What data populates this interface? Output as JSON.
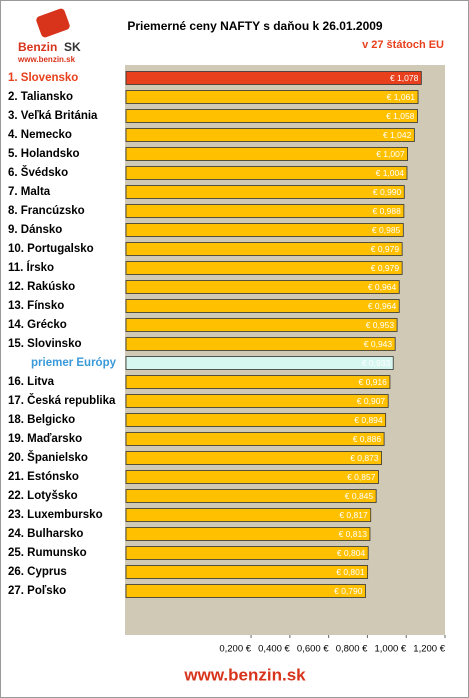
{
  "logo": {
    "name": "Benzin",
    "country": "SK",
    "url": "www.benzin.sk"
  },
  "footer": "www.benzin.sk",
  "chart_data": {
    "type": "hbar",
    "title": "Priemerné ceny NAFTY s daňou k 26.01.2009",
    "subtitle": "v 27 štátoch EU",
    "categories": [
      "1. Slovensko",
      "2. Taliansko",
      "3. Veľká Británia",
      "4. Nemecko",
      "5. Holandsko",
      "6. Švédsko",
      "7. Malta",
      "8. Francúzsko",
      "9. Dánsko",
      "10. Portugalsko",
      "11. Írsko",
      "12. Rakúsko",
      "13. Fínsko",
      "14. Grécko",
      "15. Slovinsko",
      "priemer Európy",
      "16. Litva",
      "17. Česká republika",
      "18. Belgicko",
      "19. Maďarsko",
      "20. Španielsko",
      "21. Estónsko",
      "22. Lotyšsko",
      "23. Luxembursko",
      "24. Bulharsko",
      "25. Rumunsko",
      "26. Cyprus",
      "27. Poľsko"
    ],
    "values": [
      1.078,
      1.061,
      1.058,
      1.042,
      1.007,
      1.004,
      0.99,
      0.988,
      0.985,
      0.979,
      0.979,
      0.964,
      0.964,
      0.953,
      0.943,
      0.933,
      0.916,
      0.907,
      0.894,
      0.886,
      0.873,
      0.857,
      0.845,
      0.817,
      0.813,
      0.804,
      0.801,
      0.79
    ],
    "value_labels": [
      "€ 1,078",
      "€ 1,061",
      "€ 1,058",
      "€ 1,042",
      "€ 1,007",
      "€ 1,004",
      "€ 0,990",
      "€ 0,988",
      "€ 0,985",
      "€ 0,979",
      "€ 0,979",
      "€ 0,964",
      "€ 0,964",
      "€ 0,953",
      "€ 0,943",
      "€ 0,933",
      "€ 0,916",
      "€ 0,907",
      "€ 0,894",
      "€ 0,886",
      "€ 0,873",
      "€ 0,857",
      "€ 0,845",
      "€ 0,817",
      "€ 0,813",
      "€ 0,804",
      "€ 0,801",
      "€ 0,790"
    ],
    "colors": [
      "#e8401c",
      "#ffc000",
      "#ffc000",
      "#ffc000",
      "#ffc000",
      "#ffc000",
      "#ffc000",
      "#ffc000",
      "#ffc000",
      "#ffc000",
      "#ffc000",
      "#ffc000",
      "#ffc000",
      "#ffc000",
      "#ffc000",
      "#d6f7f0",
      "#ffc000",
      "#ffc000",
      "#ffc000",
      "#ffc000",
      "#ffc000",
      "#ffc000",
      "#ffc000",
      "#ffc000",
      "#ffc000",
      "#ffc000",
      "#ffc000",
      "#ffc000"
    ],
    "label_colors": [
      "#e8401c",
      "#000",
      "#000",
      "#000",
      "#000",
      "#000",
      "#000",
      "#000",
      "#000",
      "#000",
      "#000",
      "#000",
      "#000",
      "#000",
      "#000",
      "#3a9ad9",
      "#000",
      "#000",
      "#000",
      "#000",
      "#000",
      "#000",
      "#000",
      "#000",
      "#000",
      "#000",
      "#000",
      "#000"
    ],
    "xlim": [
      -0.45,
      1.2
    ],
    "xticks": [
      {
        "value": 0.2,
        "label": "0,200 €"
      },
      {
        "value": 0.4,
        "label": "0,400 €"
      },
      {
        "value": 0.6,
        "label": "0,600 €"
      },
      {
        "value": 0.8,
        "label": "0,800 €"
      },
      {
        "value": 1.0,
        "label": "1,000 €"
      },
      {
        "value": 1.2,
        "label": "1,200 €"
      }
    ]
  }
}
